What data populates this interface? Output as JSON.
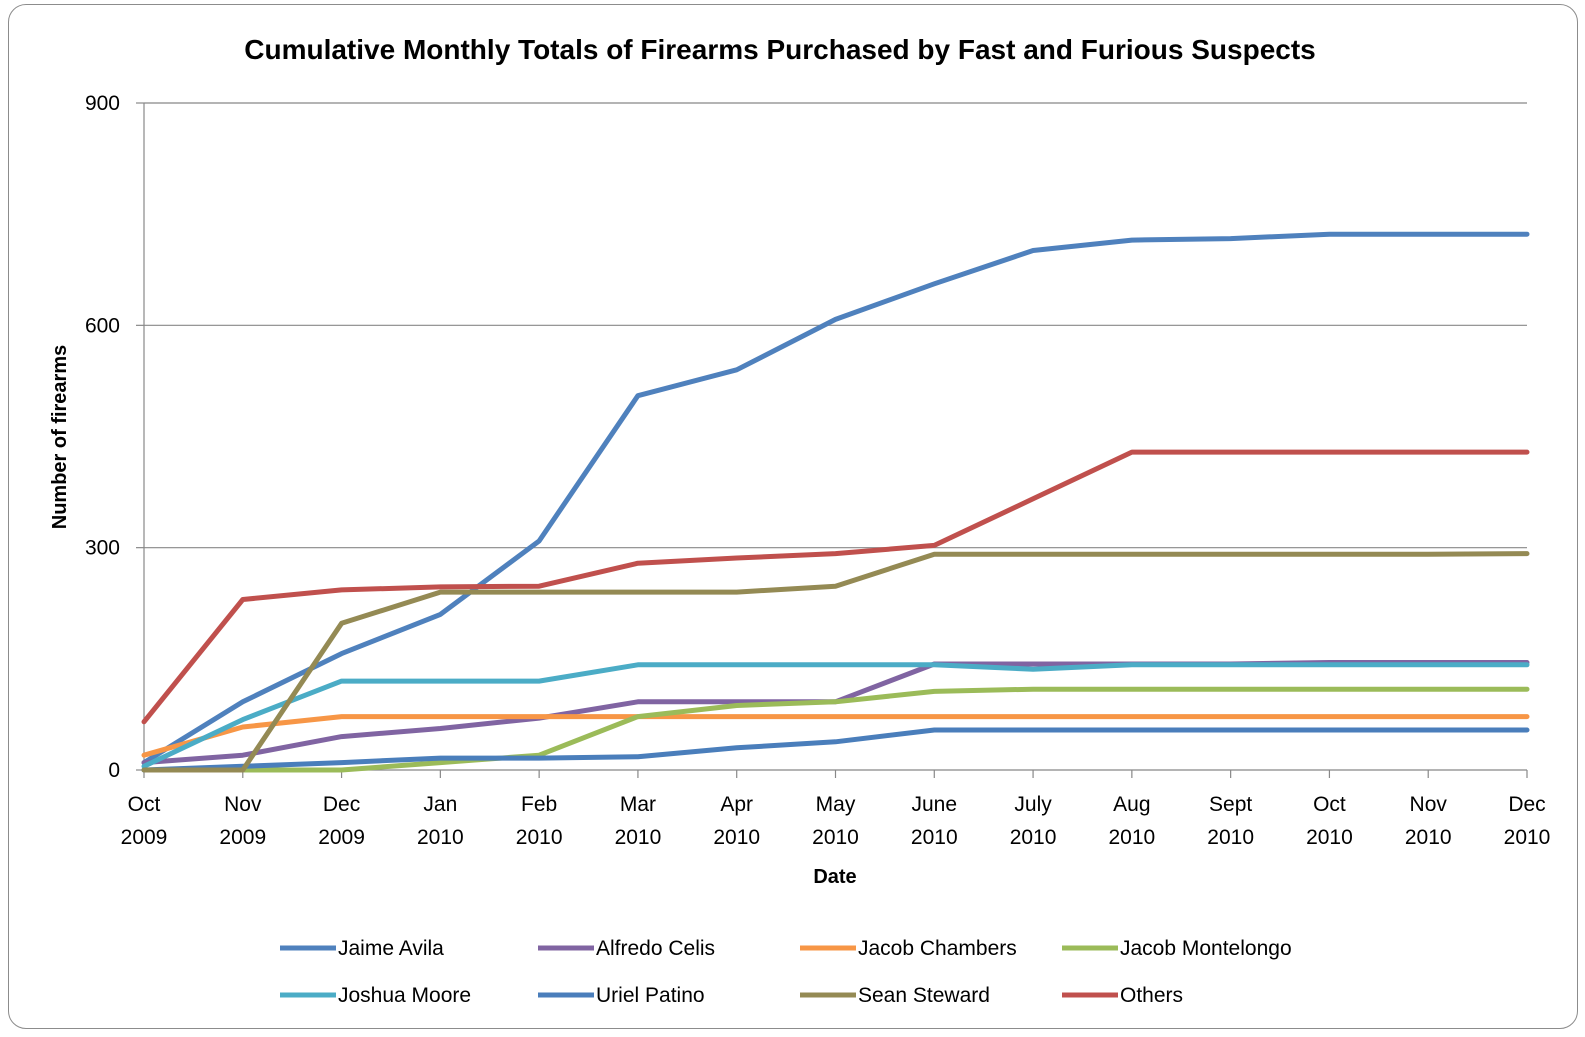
{
  "chart_data": {
    "type": "line",
    "title": "Cumulative Monthly Totals of Firearms Purchased by Fast and Furious Suspects",
    "xlabel": "Date",
    "ylabel": "Number of firearms",
    "ylim": [
      0,
      900
    ],
    "yticks": [
      "0",
      "300",
      "600",
      "900"
    ],
    "grid": "horizontal",
    "legend_position": "bottom",
    "categories": [
      [
        "Oct",
        "2009"
      ],
      [
        "Nov",
        "2009"
      ],
      [
        "Dec",
        "2009"
      ],
      [
        "Jan",
        "2010"
      ],
      [
        "Feb",
        "2010"
      ],
      [
        "Mar",
        "2010"
      ],
      [
        "Apr",
        "2010"
      ],
      [
        "May",
        "2010"
      ],
      [
        "June",
        "2010"
      ],
      [
        "July",
        "2010"
      ],
      [
        "Aug",
        "2010"
      ],
      [
        "Sept",
        "2010"
      ],
      [
        "Oct",
        "2010"
      ],
      [
        "Nov",
        "2010"
      ],
      [
        "Dec",
        "2010"
      ]
    ],
    "series": [
      {
        "name": "Jaime Avila",
        "color": "#4F81BD",
        "values": [
          10,
          92,
          157,
          210,
          309,
          505,
          540,
          608,
          656,
          701,
          715,
          717,
          723,
          723,
          723
        ]
      },
      {
        "name": "Alfredo Celis",
        "color": "#8064A2",
        "values": [
          10,
          20,
          45,
          56,
          70,
          92,
          92,
          92,
          143,
          143,
          143,
          143,
          145,
          145,
          145
        ]
      },
      {
        "name": "Jacob Chambers",
        "color": "#F79646",
        "values": [
          20,
          58,
          72,
          72,
          72,
          72,
          72,
          72,
          72,
          72,
          72,
          72,
          72,
          72,
          72
        ]
      },
      {
        "name": "Jacob Montelongo",
        "color": "#9BBB59",
        "values": [
          0,
          0,
          0,
          10,
          20,
          72,
          87,
          92,
          106,
          109,
          109,
          109,
          109,
          109,
          109
        ]
      },
      {
        "name": "Joshua Moore",
        "color": "#4BACC6",
        "values": [
          5,
          68,
          120,
          120,
          120,
          142,
          142,
          142,
          142,
          136,
          142,
          142,
          142,
          142,
          142
        ]
      },
      {
        "name": "Uriel Patino",
        "color": "#4A7EBB",
        "values": [
          0,
          5,
          10,
          16,
          16,
          18,
          30,
          38,
          54,
          54,
          54,
          54,
          54,
          54,
          54
        ]
      },
      {
        "name": "Sean Steward",
        "color": "#948A54",
        "values": [
          0,
          0,
          198,
          240,
          240,
          240,
          240,
          248,
          291,
          291,
          291,
          291,
          291,
          291,
          292
        ]
      },
      {
        "name": "Others",
        "color": "#C0504D",
        "values": [
          65,
          230,
          243,
          247,
          248,
          279,
          286,
          292,
          303,
          366,
          429,
          429,
          429,
          429,
          429
        ]
      }
    ]
  }
}
